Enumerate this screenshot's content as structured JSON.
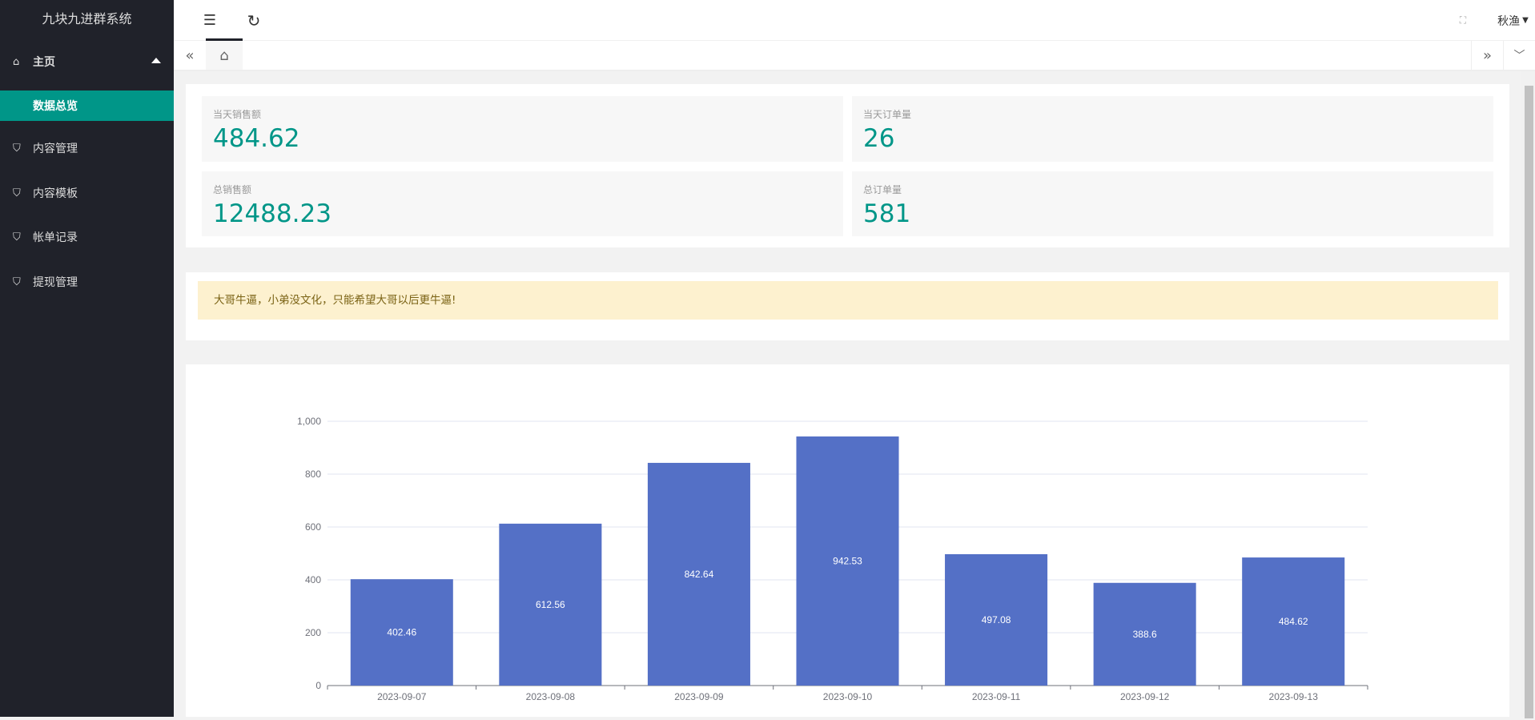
{
  "app": {
    "title": "九块九进群系统"
  },
  "sidebar": {
    "items": [
      {
        "label": "主页",
        "icon": "home-icon"
      },
      {
        "label": "数据总览",
        "icon": ""
      },
      {
        "label": "内容管理",
        "icon": "shield-check-icon"
      },
      {
        "label": "内容模板",
        "icon": "shield-check-icon"
      },
      {
        "label": "帐单记录",
        "icon": "shield-check-icon"
      },
      {
        "label": "提现管理",
        "icon": "shield-check-icon"
      }
    ]
  },
  "header": {
    "user": "秋渔"
  },
  "stats": [
    {
      "label": "当天销售额",
      "value": "484.62"
    },
    {
      "label": "当天订单量",
      "value": "26"
    },
    {
      "label": "总销售额",
      "value": "12488.23"
    },
    {
      "label": "总订单量",
      "value": "581"
    }
  ],
  "notice": "大哥牛逼，小弟没文化，只能希望大哥以后更牛逼!",
  "chart_data": {
    "type": "bar",
    "categories": [
      "2023-09-07",
      "2023-09-08",
      "2023-09-09",
      "2023-09-10",
      "2023-09-11",
      "2023-09-12",
      "2023-09-13"
    ],
    "values": [
      402.46,
      612.56,
      842.64,
      942.53,
      497.08,
      388.6,
      484.62
    ],
    "ylim": [
      0,
      1000
    ],
    "yticks": [
      "0",
      "200",
      "400",
      "600",
      "800",
      "1,000"
    ],
    "grid": true,
    "color": "#5470c6"
  }
}
